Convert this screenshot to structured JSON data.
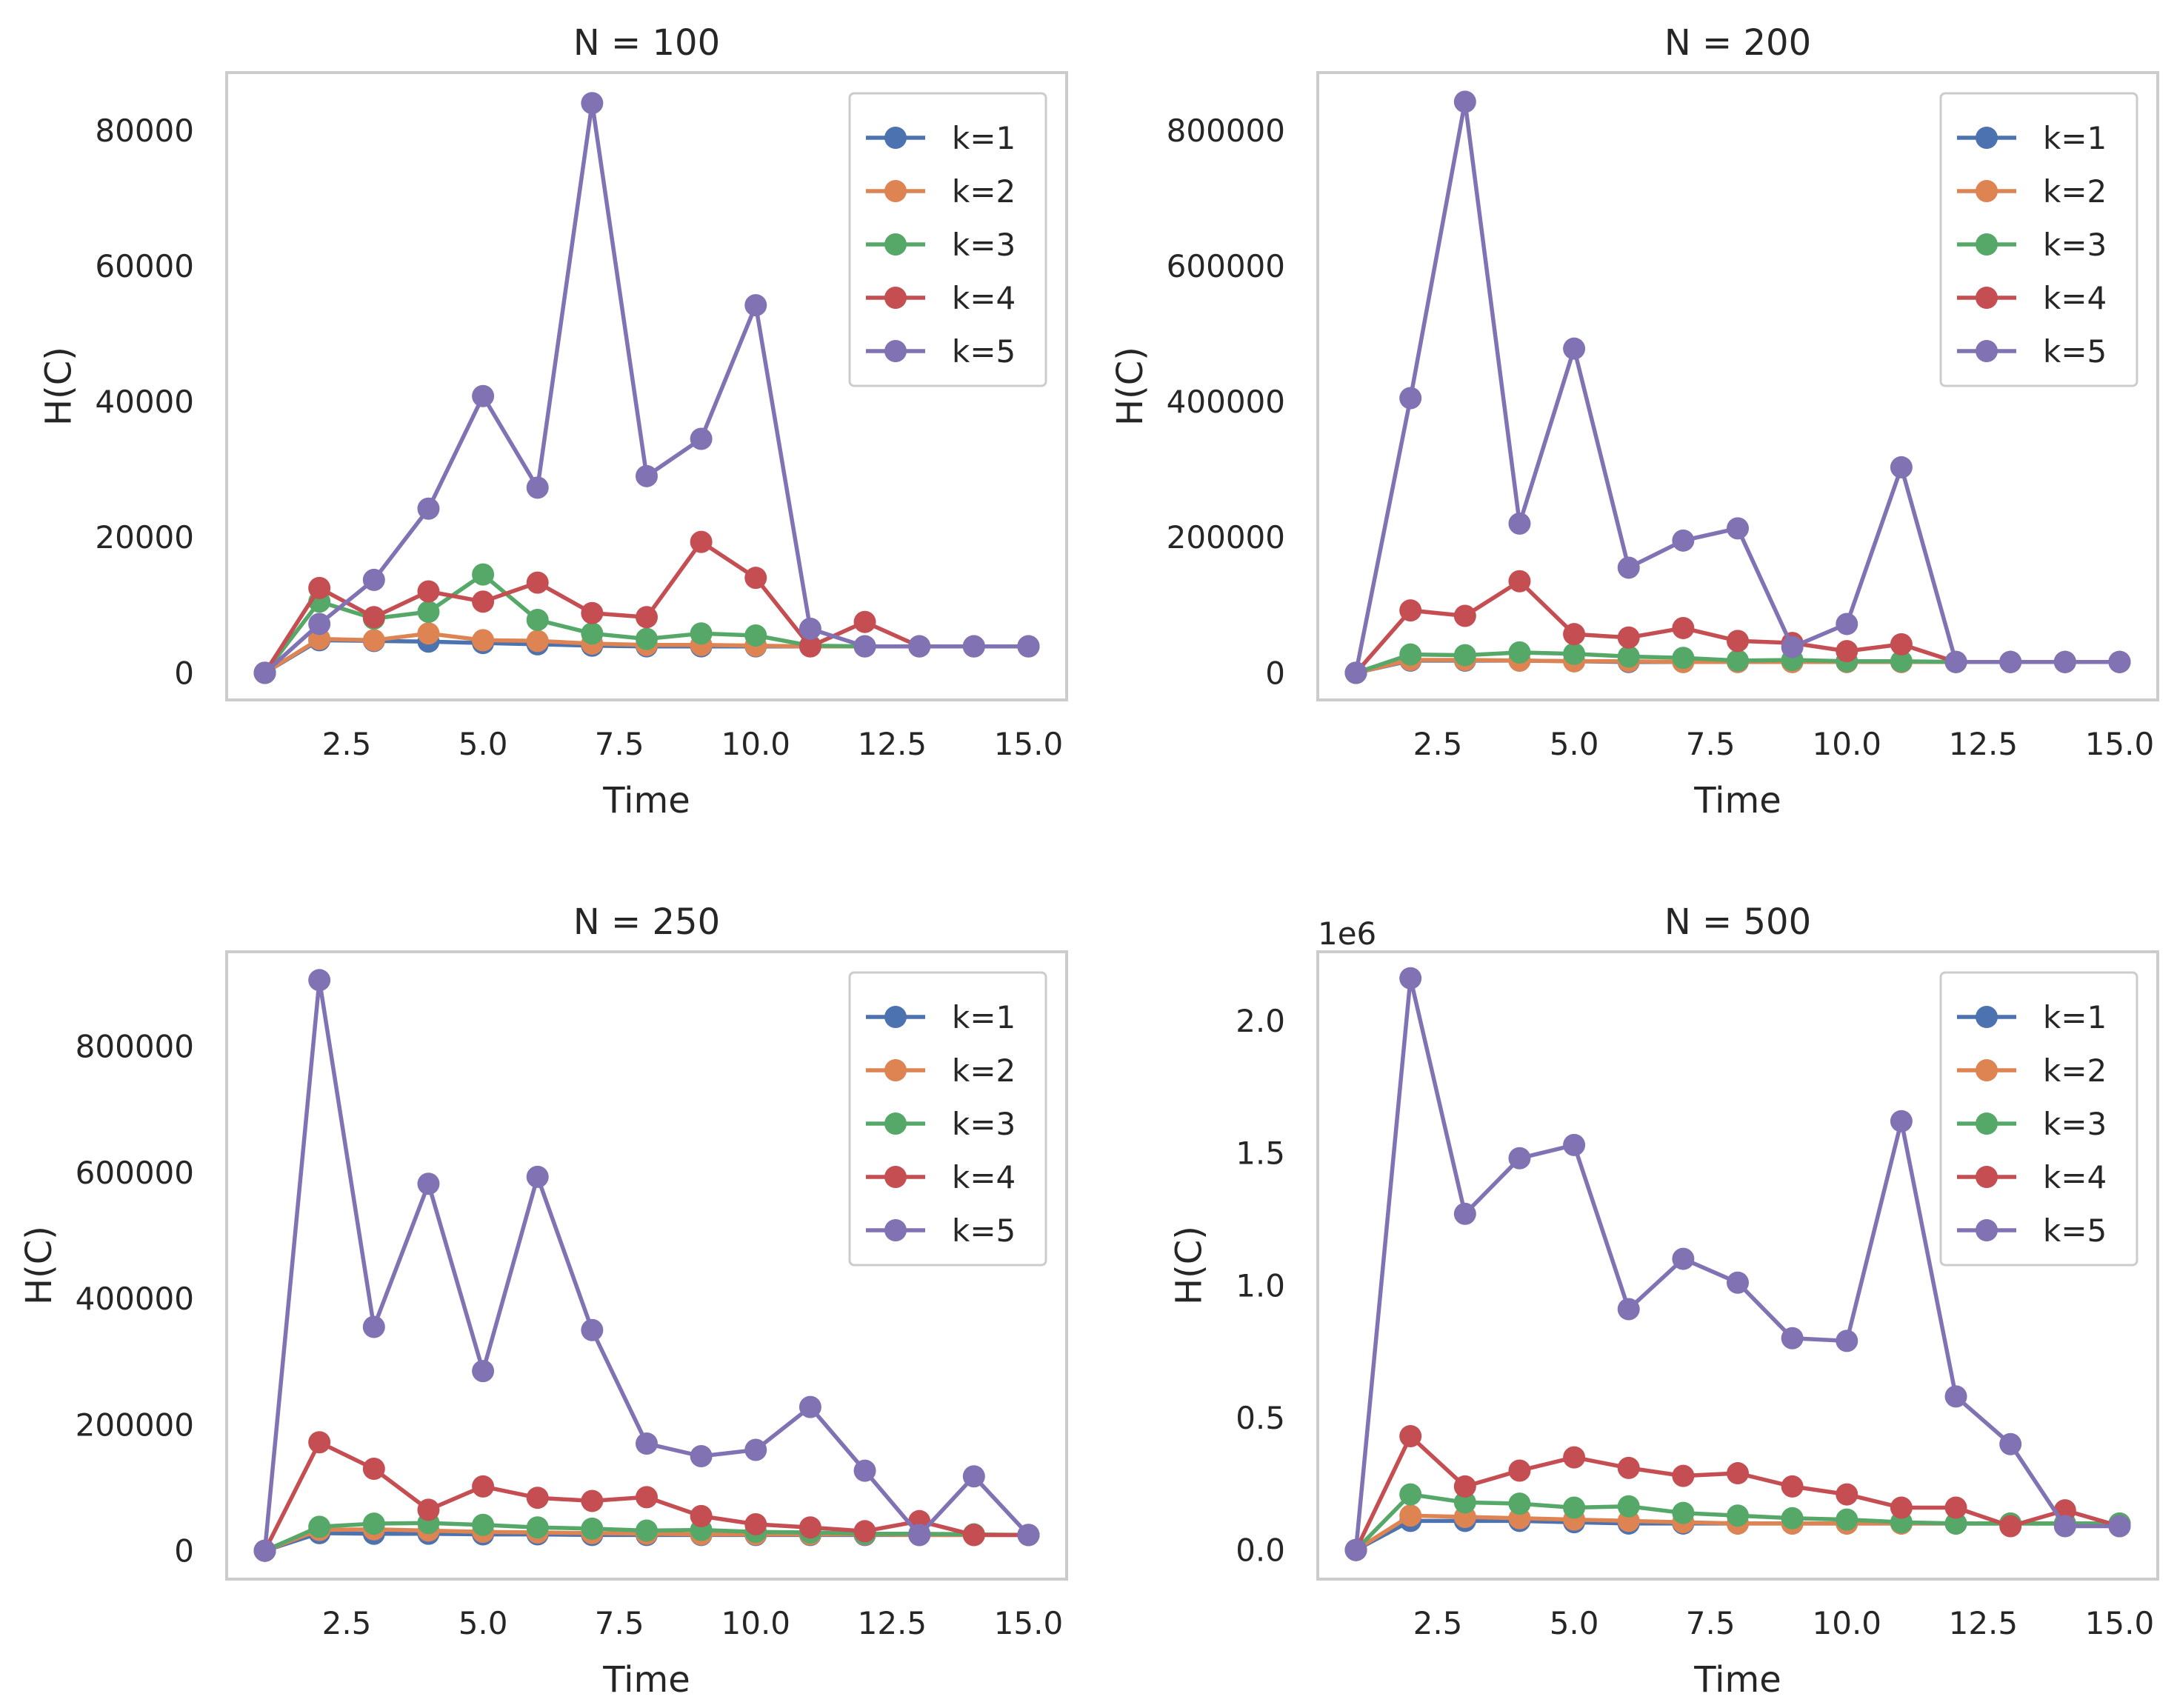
{
  "figure": {
    "colors": [
      "#4c72b0",
      "#dd8452",
      "#55a868",
      "#c44e52",
      "#8172b3"
    ]
  },
  "chart_data": [
    {
      "type": "line",
      "title": "N = 100",
      "xlabel": "Time",
      "ylabel": "H(C)",
      "x": [
        1,
        2,
        3,
        4,
        5,
        6,
        7,
        8,
        9,
        10,
        11,
        12,
        13,
        14,
        15
      ],
      "xlim": [
        0.3,
        15.7
      ],
      "ylim": [
        -4000,
        88500
      ],
      "xticks": [
        2.5,
        5.0,
        7.5,
        10.0,
        12.5,
        15.0
      ],
      "xtick_labels": [
        "2.5",
        "5.0",
        "7.5",
        "10.0",
        "12.5",
        "15.0"
      ],
      "yticks": [
        0,
        20000,
        40000,
        60000,
        80000
      ],
      "ytick_labels": [
        "0",
        "20000",
        "40000",
        "60000",
        "80000"
      ],
      "offset_label": "",
      "legend": "top-right",
      "grid": false,
      "series": [
        {
          "name": "k=1",
          "values": [
            0,
            4800,
            4700,
            4600,
            4400,
            4200,
            4000,
            3900,
            3900,
            3900,
            3900,
            3900,
            3900,
            3900,
            3900
          ]
        },
        {
          "name": "k=2",
          "values": [
            0,
            5000,
            4800,
            5800,
            4800,
            4700,
            4300,
            4100,
            4100,
            4000,
            3900,
            3900,
            3900,
            3900,
            3900
          ]
        },
        {
          "name": "k=3",
          "values": [
            0,
            10500,
            8000,
            9000,
            14500,
            7800,
            5800,
            5000,
            5800,
            5500,
            4000,
            3900,
            3900,
            3900,
            3900
          ]
        },
        {
          "name": "k=4",
          "values": [
            0,
            12500,
            8200,
            12000,
            10500,
            13300,
            8800,
            8200,
            19300,
            14000,
            3900,
            7500,
            3900,
            3900,
            3900
          ]
        },
        {
          "name": "k=5",
          "values": [
            0,
            7200,
            13700,
            24200,
            40800,
            27300,
            84000,
            29000,
            34500,
            54200,
            6500,
            3900,
            3900,
            3900,
            3900
          ]
        }
      ]
    },
    {
      "type": "line",
      "title": "N = 200",
      "xlabel": "Time",
      "ylabel": "H(C)",
      "x": [
        1,
        2,
        3,
        4,
        5,
        6,
        7,
        8,
        9,
        10,
        11,
        12,
        13,
        14,
        15
      ],
      "xlim": [
        0.3,
        15.7
      ],
      "ylim": [
        -40000,
        885000
      ],
      "xticks": [
        2.5,
        5.0,
        7.5,
        10.0,
        12.5,
        15.0
      ],
      "xtick_labels": [
        "2.5",
        "5.0",
        "7.5",
        "10.0",
        "12.5",
        "15.0"
      ],
      "yticks": [
        0,
        200000,
        400000,
        600000,
        800000
      ],
      "ytick_labels": [
        "0",
        "200000",
        "400000",
        "600000",
        "800000"
      ],
      "offset_label": "",
      "legend": "top-right",
      "grid": false,
      "series": [
        {
          "name": "k=1",
          "values": [
            0,
            18000,
            18000,
            18000,
            17000,
            16000,
            16000,
            16000,
            16000,
            16000,
            16000,
            16000,
            16000,
            16000,
            16000
          ]
        },
        {
          "name": "k=2",
          "values": [
            0,
            19000,
            19000,
            18000,
            17000,
            17000,
            16000,
            16000,
            16000,
            16000,
            16000,
            16000,
            16000,
            16000,
            16000
          ]
        },
        {
          "name": "k=3",
          "values": [
            0,
            27000,
            26000,
            30000,
            28000,
            24000,
            22000,
            18000,
            19000,
            17000,
            17000,
            16000,
            16000,
            16000,
            16000
          ]
        },
        {
          "name": "k=4",
          "values": [
            0,
            92000,
            84000,
            135000,
            57000,
            52000,
            66000,
            47000,
            44000,
            32000,
            42000,
            16000,
            16000,
            16000,
            16000
          ]
        },
        {
          "name": "k=5",
          "values": [
            0,
            405000,
            842000,
            220000,
            478000,
            155000,
            195000,
            213000,
            38000,
            72000,
            303000,
            16000,
            16000,
            16000,
            16000
          ]
        }
      ]
    },
    {
      "type": "line",
      "title": "N = 250",
      "xlabel": "Time",
      "ylabel": "H(C)",
      "x": [
        1,
        2,
        3,
        4,
        5,
        6,
        7,
        8,
        9,
        10,
        11,
        12,
        13,
        14,
        15
      ],
      "xlim": [
        0.3,
        15.7
      ],
      "ylim": [
        -45000,
        950000
      ],
      "xticks": [
        2.5,
        5.0,
        7.5,
        10.0,
        12.5,
        15.0
      ],
      "xtick_labels": [
        "2.5",
        "5.0",
        "7.5",
        "10.0",
        "12.5",
        "15.0"
      ],
      "yticks": [
        0,
        200000,
        400000,
        600000,
        800000
      ],
      "ytick_labels": [
        "0",
        "200000",
        "400000",
        "600000",
        "800000"
      ],
      "offset_label": "",
      "legend": "top-right",
      "grid": false,
      "series": [
        {
          "name": "k=1",
          "values": [
            0,
            28000,
            27000,
            27000,
            26000,
            26000,
            25000,
            25000,
            25000,
            25000,
            25000,
            25000,
            25000,
            25000,
            25000
          ]
        },
        {
          "name": "k=2",
          "values": [
            0,
            33000,
            34000,
            32000,
            30000,
            29000,
            28000,
            27000,
            26000,
            26000,
            26000,
            26000,
            25000,
            25000,
            25000
          ]
        },
        {
          "name": "k=3",
          "values": [
            0,
            38000,
            43000,
            44000,
            41000,
            37000,
            35000,
            32000,
            33000,
            30000,
            29000,
            27000,
            27000,
            26000,
            25000
          ]
        },
        {
          "name": "k=4",
          "values": [
            0,
            172000,
            130000,
            65000,
            102000,
            84000,
            79000,
            85000,
            55000,
            42000,
            37000,
            31000,
            47000,
            25000,
            25000
          ]
        },
        {
          "name": "k=5",
          "values": [
            0,
            905000,
            355000,
            582000,
            285000,
            593000,
            350000,
            170000,
            150000,
            160000,
            228000,
            127000,
            25000,
            118000,
            25000
          ]
        }
      ]
    },
    {
      "type": "line",
      "title": "N = 500",
      "xlabel": "Time",
      "ylabel": "H(C)",
      "x": [
        1,
        2,
        3,
        4,
        5,
        6,
        7,
        8,
        9,
        10,
        11,
        12,
        13,
        14,
        15
      ],
      "xlim": [
        0.3,
        15.7
      ],
      "ylim": [
        -0.11,
        2.26
      ],
      "xticks": [
        2.5,
        5.0,
        7.5,
        10.0,
        12.5,
        15.0
      ],
      "xtick_labels": [
        "2.5",
        "5.0",
        "7.5",
        "10.0",
        "12.5",
        "15.0"
      ],
      "yticks": [
        0.0,
        0.5,
        1.0,
        1.5,
        2.0
      ],
      "ytick_labels": [
        "0.0",
        "0.5",
        "1.0",
        "1.5",
        "2.0"
      ],
      "offset_label": "1e6",
      "legend": "top-right",
      "grid": false,
      "series": [
        {
          "name": "k=1",
          "values": [
            0,
            0.11,
            0.11,
            0.11,
            0.105,
            0.1,
            0.1,
            0.1,
            0.1,
            0.1,
            0.1,
            0.1,
            0.1,
            0.1,
            0.1
          ]
        },
        {
          "name": "k=2",
          "values": [
            0,
            0.13,
            0.125,
            0.12,
            0.115,
            0.11,
            0.105,
            0.1,
            0.1,
            0.1,
            0.1,
            0.1,
            0.1,
            0.1,
            0.1
          ]
        },
        {
          "name": "k=3",
          "values": [
            0,
            0.21,
            0.18,
            0.175,
            0.16,
            0.165,
            0.14,
            0.13,
            0.12,
            0.115,
            0.105,
            0.1,
            0.1,
            0.1,
            0.1
          ]
        },
        {
          "name": "k=4",
          "values": [
            0,
            0.43,
            0.24,
            0.3,
            0.35,
            0.31,
            0.28,
            0.29,
            0.24,
            0.21,
            0.16,
            0.16,
            0.09,
            0.15,
            0.09
          ]
        },
        {
          "name": "k=5",
          "values": [
            0,
            2.16,
            1.27,
            1.48,
            1.53,
            0.91,
            1.1,
            1.01,
            0.8,
            0.79,
            1.62,
            0.58,
            0.4,
            0.09,
            0.09
          ]
        }
      ]
    }
  ]
}
